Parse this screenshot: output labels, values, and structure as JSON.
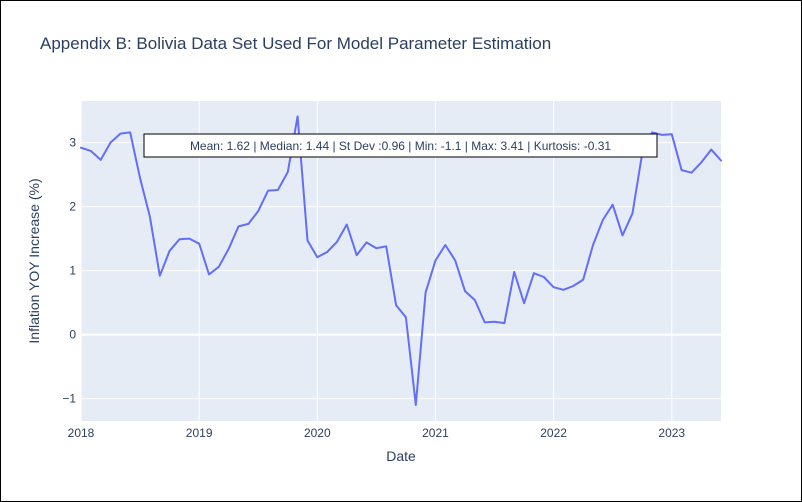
{
  "chart_data": {
    "type": "line",
    "title": "Appendix B: Bolivia Data Set Used For Model Parameter Estimation",
    "xlabel": "Date",
    "ylabel": "Inflation YOY Increase (%)",
    "x_ticks": [
      "2018",
      "2019",
      "2020",
      "2021",
      "2022",
      "2023"
    ],
    "y_ticks": [
      "−1",
      "0",
      "1",
      "2",
      "3"
    ],
    "xlim": [
      "2018-01",
      "2023-06"
    ],
    "ylim": [
      -1.35,
      3.65
    ],
    "grid": true,
    "line_color": "#636efa",
    "annotation": "Mean: 1.62 | Median: 1.44 | St Dev :0.96 | Min: -1.1 | Max: 3.41 | Kurtosis: -0.31",
    "x": [
      "2018-01",
      "2018-02",
      "2018-03",
      "2018-04",
      "2018-05",
      "2018-06",
      "2018-07",
      "2018-08",
      "2018-09",
      "2018-10",
      "2018-11",
      "2018-12",
      "2019-01",
      "2019-02",
      "2019-03",
      "2019-04",
      "2019-05",
      "2019-06",
      "2019-07",
      "2019-08",
      "2019-09",
      "2019-10",
      "2019-11",
      "2019-12",
      "2020-01",
      "2020-02",
      "2020-03",
      "2020-04",
      "2020-05",
      "2020-06",
      "2020-07",
      "2020-08",
      "2020-09",
      "2020-10",
      "2020-11",
      "2020-12",
      "2021-01",
      "2021-02",
      "2021-03",
      "2021-04",
      "2021-05",
      "2021-06",
      "2021-07",
      "2021-08",
      "2021-09",
      "2021-10",
      "2021-11",
      "2021-12",
      "2022-01",
      "2022-02",
      "2022-03",
      "2022-04",
      "2022-05",
      "2022-06",
      "2022-07",
      "2022-08",
      "2022-09",
      "2022-10",
      "2022-11",
      "2022-12",
      "2023-01",
      "2023-02",
      "2023-03",
      "2023-04",
      "2023-05",
      "2023-06"
    ],
    "y": [
      2.92,
      2.87,
      2.73,
      3.0,
      3.14,
      3.16,
      2.44,
      1.84,
      0.92,
      1.31,
      1.49,
      1.5,
      1.42,
      0.94,
      1.06,
      1.34,
      1.69,
      1.73,
      1.93,
      2.25,
      2.26,
      2.54,
      3.41,
      1.47,
      1.21,
      1.29,
      1.45,
      1.72,
      1.24,
      1.44,
      1.35,
      1.38,
      0.46,
      0.27,
      -1.1,
      0.66,
      1.16,
      1.4,
      1.16,
      0.68,
      0.54,
      0.19,
      0.2,
      0.18,
      0.98,
      0.49,
      0.96,
      0.9,
      0.74,
      0.7,
      0.76,
      0.86,
      1.4,
      1.79,
      2.03,
      1.55,
      1.89,
      2.83,
      3.16,
      3.12,
      3.13,
      2.57,
      2.53,
      2.69,
      2.89,
      2.72
    ]
  }
}
